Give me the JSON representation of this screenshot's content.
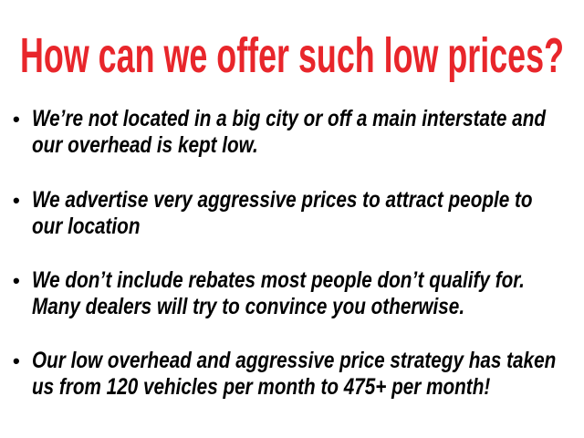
{
  "title": "How can we offer such low prices?",
  "title_color": "#e8262b",
  "bullets": [
    {
      "lines": [
        "We’re not located in a big city or off a main interstate and",
        "our overhead is kept low."
      ]
    },
    {
      "lines": [
        "We advertise very aggressive prices to attract people to",
        "our location"
      ]
    },
    {
      "lines": [
        "We don’t include rebates most people don’t qualify for.",
        "Many dealers will try to convince you otherwise."
      ]
    },
    {
      "lines": [
        "Our low overhead and aggressive price strategy has taken",
        "us from 120 vehicles per month to 475+ per month!"
      ]
    }
  ],
  "bullet_glyph": "•"
}
